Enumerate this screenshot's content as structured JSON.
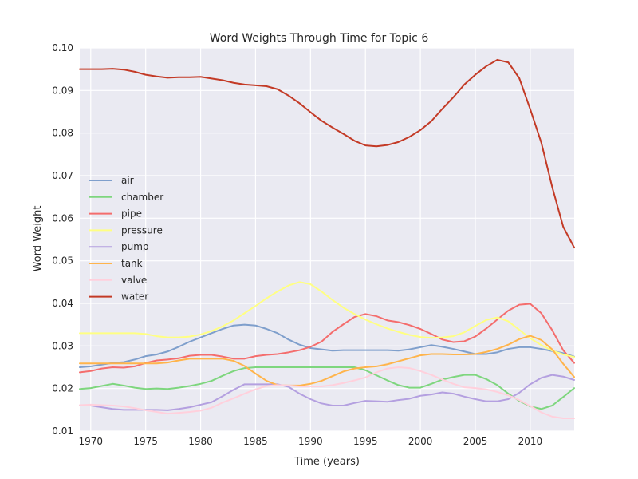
{
  "chart_data": {
    "type": "line",
    "title": "Word Weights Through Time for Topic 6",
    "xlabel": "Time (years)",
    "ylabel": "Word Weight",
    "xlim": [
      1969,
      2014
    ],
    "ylim": [
      0.01,
      0.1
    ],
    "x_ticks": [
      1970,
      1975,
      1980,
      1985,
      1990,
      1995,
      2000,
      2005,
      2010
    ],
    "y_ticks": [
      "0.01",
      "0.02",
      "0.03",
      "0.04",
      "0.05",
      "0.06",
      "0.07",
      "0.08",
      "0.09",
      "0.10"
    ],
    "grid": true,
    "legend_position": "center-left",
    "background": "#EAEAF2",
    "x": [
      1969,
      1970,
      1971,
      1972,
      1973,
      1974,
      1975,
      1976,
      1977,
      1978,
      1979,
      1980,
      1981,
      1982,
      1983,
      1984,
      1985,
      1986,
      1987,
      1988,
      1989,
      1990,
      1991,
      1992,
      1993,
      1994,
      1995,
      1996,
      1997,
      1998,
      1999,
      2000,
      2001,
      2002,
      2003,
      2004,
      2005,
      2006,
      2007,
      2008,
      2009,
      2010,
      2011,
      2012,
      2013,
      2014
    ],
    "series": [
      {
        "name": "air",
        "color": "#7F9FCC",
        "values": [
          0.025,
          0.0252,
          0.0256,
          0.026,
          0.0262,
          0.0268,
          0.0276,
          0.028,
          0.0287,
          0.0298,
          0.031,
          0.032,
          0.033,
          0.034,
          0.0348,
          0.035,
          0.0348,
          0.034,
          0.033,
          0.0315,
          0.0303,
          0.0295,
          0.0292,
          0.0289,
          0.029,
          0.029,
          0.029,
          0.029,
          0.029,
          0.0289,
          0.0292,
          0.0297,
          0.0302,
          0.0298,
          0.0293,
          0.0287,
          0.0281,
          0.0281,
          0.0285,
          0.0293,
          0.0297,
          0.0297,
          0.0293,
          0.0288,
          0.0283,
          0.0275
        ]
      },
      {
        "name": "chamber",
        "color": "#7ED67E",
        "values": [
          0.0199,
          0.0201,
          0.0206,
          0.0211,
          0.0207,
          0.0202,
          0.0199,
          0.02,
          0.0199,
          0.0202,
          0.0206,
          0.0211,
          0.0218,
          0.023,
          0.0241,
          0.0248,
          0.025,
          0.025,
          0.025,
          0.025,
          0.025,
          0.025,
          0.025,
          0.025,
          0.025,
          0.025,
          0.0243,
          0.0231,
          0.0219,
          0.0208,
          0.0202,
          0.0202,
          0.0211,
          0.0221,
          0.0227,
          0.0232,
          0.0232,
          0.0222,
          0.0208,
          0.0188,
          0.0171,
          0.0158,
          0.0152,
          0.016,
          0.018,
          0.0201
        ]
      },
      {
        "name": "pipe",
        "color": "#F46D6D",
        "values": [
          0.0238,
          0.0241,
          0.0247,
          0.025,
          0.0249,
          0.0252,
          0.026,
          0.0266,
          0.0268,
          0.0271,
          0.0277,
          0.0279,
          0.0279,
          0.0275,
          0.027,
          0.027,
          0.0276,
          0.0279,
          0.0281,
          0.0285,
          0.029,
          0.0298,
          0.031,
          0.0333,
          0.0351,
          0.0368,
          0.0375,
          0.037,
          0.036,
          0.0356,
          0.0349,
          0.034,
          0.0328,
          0.0315,
          0.0309,
          0.0311,
          0.0322,
          0.0341,
          0.0362,
          0.0383,
          0.0397,
          0.0399,
          0.0377,
          0.0337,
          0.029,
          0.026
        ]
      },
      {
        "name": "pressure",
        "color": "#FFFF82",
        "values": [
          0.033,
          0.033,
          0.033,
          0.033,
          0.033,
          0.033,
          0.0328,
          0.0323,
          0.032,
          0.032,
          0.0322,
          0.0327,
          0.0335,
          0.0346,
          0.036,
          0.0377,
          0.0394,
          0.0412,
          0.0428,
          0.0442,
          0.045,
          0.0445,
          0.0428,
          0.0408,
          0.039,
          0.0375,
          0.0362,
          0.0351,
          0.0341,
          0.0333,
          0.0326,
          0.0321,
          0.0319,
          0.032,
          0.0323,
          0.0332,
          0.0347,
          0.0361,
          0.0367,
          0.0358,
          0.0338,
          0.0318,
          0.0302,
          0.0289,
          0.028,
          0.0274
        ]
      },
      {
        "name": "pump",
        "color": "#B4A0E0",
        "values": [
          0.016,
          0.016,
          0.0156,
          0.0152,
          0.015,
          0.015,
          0.015,
          0.015,
          0.0149,
          0.0152,
          0.0156,
          0.0162,
          0.0168,
          0.0182,
          0.0197,
          0.021,
          0.021,
          0.021,
          0.021,
          0.0204,
          0.0188,
          0.0175,
          0.0165,
          0.016,
          0.016,
          0.0166,
          0.0171,
          0.017,
          0.0169,
          0.0173,
          0.0176,
          0.0183,
          0.0186,
          0.0191,
          0.0188,
          0.0181,
          0.0175,
          0.017,
          0.017,
          0.0175,
          0.019,
          0.021,
          0.0225,
          0.0232,
          0.0228,
          0.022
        ]
      },
      {
        "name": "tank",
        "color": "#FFB44B",
        "values": [
          0.0259,
          0.0259,
          0.0259,
          0.0259,
          0.0259,
          0.0259,
          0.0259,
          0.0259,
          0.0261,
          0.0266,
          0.027,
          0.027,
          0.027,
          0.027,
          0.0265,
          0.0253,
          0.0235,
          0.0218,
          0.0208,
          0.0207,
          0.0207,
          0.0211,
          0.0218,
          0.0229,
          0.024,
          0.0247,
          0.025,
          0.0252,
          0.0257,
          0.0264,
          0.0271,
          0.0278,
          0.0281,
          0.0281,
          0.028,
          0.028,
          0.0281,
          0.0286,
          0.0293,
          0.0303,
          0.0316,
          0.0324,
          0.0314,
          0.0292,
          0.0258,
          0.0227
        ]
      },
      {
        "name": "valve",
        "color": "#FFD0DC",
        "values": [
          0.0161,
          0.0162,
          0.0161,
          0.016,
          0.0158,
          0.0154,
          0.0149,
          0.0145,
          0.0141,
          0.0143,
          0.0145,
          0.0148,
          0.0155,
          0.0167,
          0.0177,
          0.0188,
          0.0198,
          0.0206,
          0.0208,
          0.0207,
          0.0205,
          0.0205,
          0.0205,
          0.0208,
          0.0213,
          0.0219,
          0.0226,
          0.0238,
          0.0247,
          0.025,
          0.0248,
          0.0241,
          0.0232,
          0.0221,
          0.0211,
          0.0203,
          0.0201,
          0.0198,
          0.0192,
          0.0184,
          0.0173,
          0.0159,
          0.0144,
          0.0134,
          0.013,
          0.013
        ]
      },
      {
        "name": "water",
        "color": "#C33A26",
        "values": [
          0.095,
          0.095,
          0.095,
          0.0951,
          0.0949,
          0.0944,
          0.0937,
          0.0933,
          0.093,
          0.0931,
          0.0931,
          0.0932,
          0.0928,
          0.0924,
          0.0918,
          0.0914,
          0.0912,
          0.091,
          0.0903,
          0.0888,
          0.087,
          0.0849,
          0.0829,
          0.0813,
          0.0798,
          0.0782,
          0.0771,
          0.0769,
          0.0772,
          0.0779,
          0.0791,
          0.0807,
          0.0828,
          0.0857,
          0.0884,
          0.0914,
          0.0937,
          0.0957,
          0.0972,
          0.0966,
          0.0929,
          0.0856,
          0.0778,
          0.0673,
          0.058,
          0.0531
        ]
      }
    ]
  }
}
